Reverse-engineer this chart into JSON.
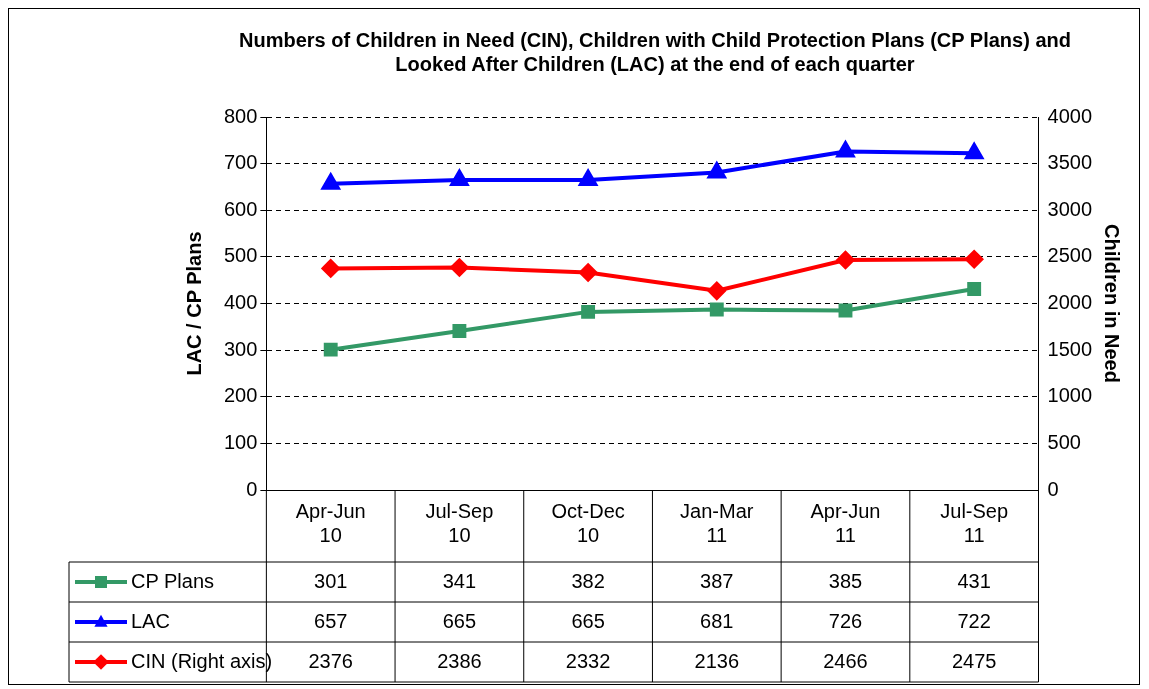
{
  "chart_data": {
    "type": "line",
    "title": "Numbers of Children in Need (CIN), Children with Child Protection Plans (CP Plans) and Looked After Children (LAC) at the end of each quarter",
    "categories": [
      "Apr-Jun 10",
      "Jul-Sep 10",
      "Oct-Dec 10",
      "Jan-Mar 11",
      "Apr-Jun 11",
      "Jul-Sep 11"
    ],
    "series": [
      {
        "name": "CP Plans",
        "color": "#339966",
        "marker": "square",
        "values": [
          301,
          341,
          382,
          387,
          385,
          431
        ]
      },
      {
        "name": "LAC",
        "color": "#0000ff",
        "marker": "triangle",
        "values": [
          657,
          665,
          665,
          681,
          726,
          722
        ]
      },
      {
        "name": "CIN (Right axis)",
        "color": "#ff0000",
        "marker": "diamond",
        "axis": "y2",
        "values": [
          2376,
          2386,
          2332,
          2136,
          2466,
          2475
        ]
      }
    ],
    "ylabel": "LAC / CP Plans",
    "y2label": "Children in Need",
    "ylim": [
      0,
      800
    ],
    "yticks": [
      0,
      100,
      200,
      300,
      400,
      500,
      600,
      700,
      800
    ],
    "y2lim": [
      0,
      4000
    ],
    "y2ticks": [
      0,
      500,
      1000,
      1500,
      2000,
      2500,
      3000,
      3500,
      4000
    ],
    "grid": "y",
    "legend": "bottom",
    "data_labels": true,
    "line_style": "solid"
  }
}
